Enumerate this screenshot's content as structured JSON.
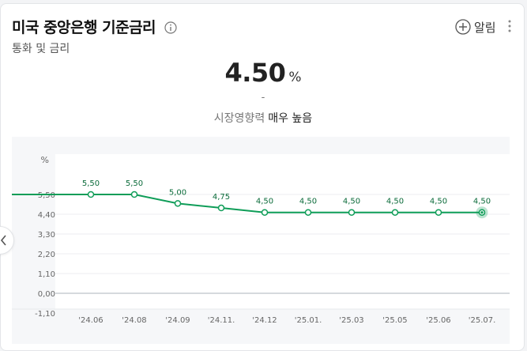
{
  "header": {
    "title": "미국 중앙은행 기준금리",
    "subtitle": "통화 및 금리",
    "alarm_label": "알림"
  },
  "icons": {
    "info": "info-icon",
    "alarm": "plus-circle-icon",
    "more": "more-vertical-icon",
    "prev": "chevron-left-icon"
  },
  "current": {
    "value": "4.50",
    "unit": "%",
    "change": "-",
    "impact_label": "시장영향력",
    "impact_value": "매우 높음"
  },
  "chart_data": {
    "type": "line",
    "ylabel": "%",
    "yticks": [
      "5,50",
      "4,40",
      "3,30",
      "2,20",
      "1,10",
      "0,00",
      "-1,10"
    ],
    "ylim": [
      -1.1,
      5.5
    ],
    "categories": [
      "'24.06",
      "'24.08",
      "'24.09",
      "'24.11.",
      "'24.12",
      "'25.01.",
      "'25.03",
      "'25.05",
      "'25.06",
      "'25.07."
    ],
    "values": [
      5.5,
      5.5,
      5.0,
      4.75,
      4.5,
      4.5,
      4.5,
      4.5,
      4.5,
      4.5
    ],
    "value_labels": [
      "5,50",
      "5,50",
      "5,00",
      "4,75",
      "4,50",
      "4,50",
      "4,50",
      "4,50",
      "4,50",
      "4,50"
    ],
    "line_color": "#0f9d58",
    "grid": true
  }
}
